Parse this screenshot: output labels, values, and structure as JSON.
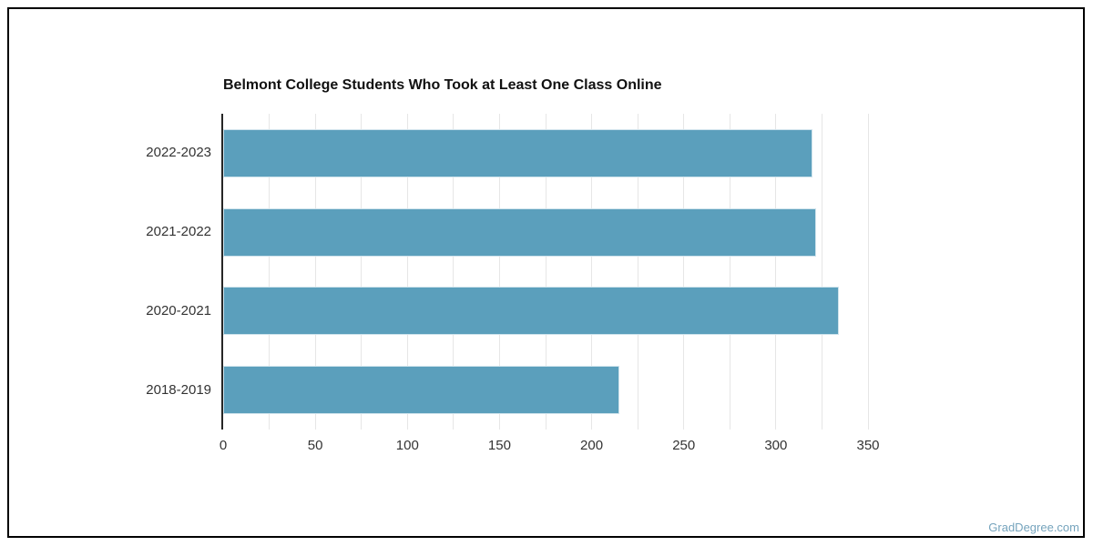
{
  "chart_data": {
    "type": "bar",
    "orientation": "horizontal",
    "title": "Belmont College Students Who Took at Least One Class Online",
    "categories": [
      "2022-2023",
      "2021-2022",
      "2020-2021",
      "2018-2019"
    ],
    "values": [
      320,
      322,
      334,
      215
    ],
    "xlabel": "",
    "ylabel": "",
    "xlim": [
      0,
      350
    ],
    "x_tick_step": 50,
    "x_grid_step": 25,
    "x_tick_labels": [
      "0",
      "50",
      "100",
      "150",
      "200",
      "250",
      "300",
      "350"
    ],
    "grid": true,
    "legend": false,
    "bar_color": "#5b9fbc",
    "bar_border_color": "#cfe3ec",
    "gridline_color": "#e6e6e6",
    "axis_line_color": "#262626",
    "label_color": "#333333",
    "title_color": "#111111"
  },
  "watermark": {
    "text": "GradDegree.com",
    "color": "#76a4bd"
  }
}
